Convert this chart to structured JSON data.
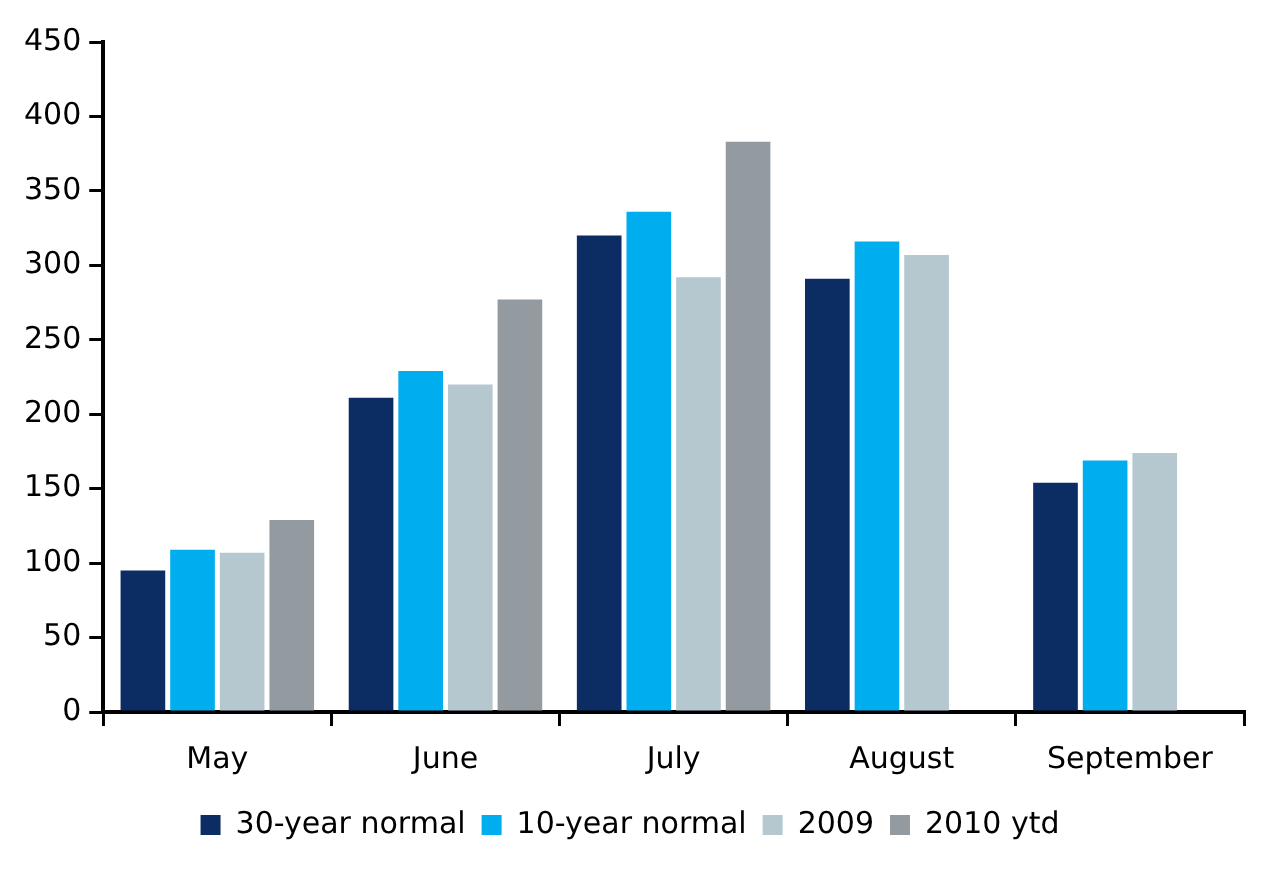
{
  "chart_data": {
    "type": "bar",
    "categories": [
      "May",
      "June",
      "July",
      "August",
      "September"
    ],
    "series": [
      {
        "name": "30-year normal",
        "color": "#0c2d63",
        "values": [
          95,
          211,
          320,
          291,
          154
        ]
      },
      {
        "name": "10-year normal",
        "color": "#00adef",
        "values": [
          109,
          229,
          336,
          316,
          169
        ]
      },
      {
        "name": "2009",
        "color": "#b5c8cf",
        "values": [
          107,
          220,
          292,
          307,
          174
        ]
      },
      {
        "name": "2010 ytd",
        "color": "#939ba1",
        "values": [
          129,
          277,
          383,
          null,
          null
        ]
      }
    ],
    "ylim": [
      0,
      450
    ],
    "yticks": [
      0,
      50,
      100,
      150,
      200,
      250,
      300,
      350,
      400,
      450
    ],
    "grid": false,
    "legend": "bottom"
  }
}
